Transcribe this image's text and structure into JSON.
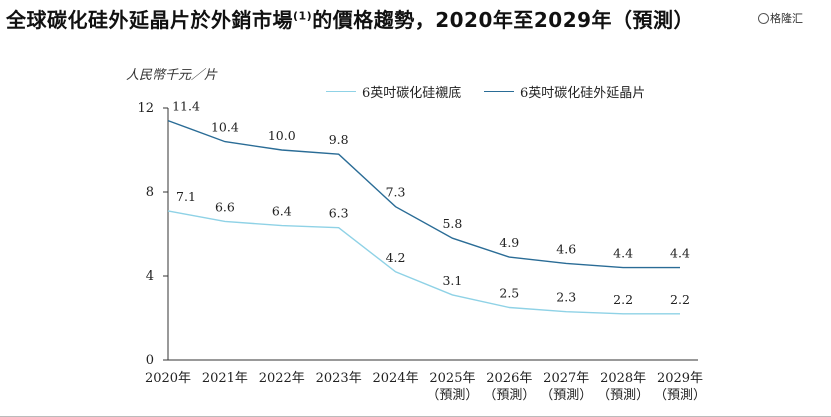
{
  "page": {
    "title": "全球碳化硅外延晶片於外銷市場",
    "title_sup": "(1)",
    "title_rest": "的價格趨勢，2020年至2029年（預測）",
    "watermark": "格隆汇",
    "unit": "人民幣千元／片"
  },
  "colors": {
    "substrate": "#8fd2e6",
    "epi_wafer": "#2a6c96",
    "axis": "#333333"
  },
  "chart_data": {
    "type": "line",
    "title": "全球碳化硅外延晶片於外銷市場(1)的價格趨勢，2020年至2029年（預測）",
    "ylabel": "人民幣千元／片",
    "xlabel": "",
    "ylim": [
      0,
      12
    ],
    "yticks": [
      "0",
      "4",
      "8",
      "12"
    ],
    "ytick_values": [
      0,
      4,
      8,
      12
    ],
    "categories": [
      "2020年",
      "2021年",
      "2022年",
      "2023年",
      "2024年",
      "2025年",
      "2026年",
      "2027年",
      "2028年",
      "2029年"
    ],
    "category_notes": [
      "",
      "",
      "",
      "",
      "",
      "（預測）",
      "（預測）",
      "（預測）",
      "（預測）",
      "（預測）"
    ],
    "legend_position": "top-right",
    "series": [
      {
        "name": "6英吋碳化硅襯底",
        "color": "#8fd2e6",
        "values": [
          7.1,
          6.6,
          6.4,
          6.3,
          4.2,
          3.1,
          2.5,
          2.3,
          2.2,
          2.2
        ],
        "labels": [
          "7.1",
          "6.6",
          "6.4",
          "6.3",
          "4.2",
          "3.1",
          "2.5",
          "2.3",
          "2.2",
          "2.2"
        ]
      },
      {
        "name": "6英吋碳化硅外延晶片",
        "color": "#2a6c96",
        "values": [
          11.4,
          10.4,
          10.0,
          9.8,
          7.3,
          5.8,
          4.9,
          4.6,
          4.4,
          4.4
        ],
        "labels": [
          "11.4",
          "10.4",
          "10.0",
          "9.8",
          "7.3",
          "5.8",
          "4.9",
          "4.6",
          "4.4",
          "4.4"
        ]
      }
    ]
  }
}
